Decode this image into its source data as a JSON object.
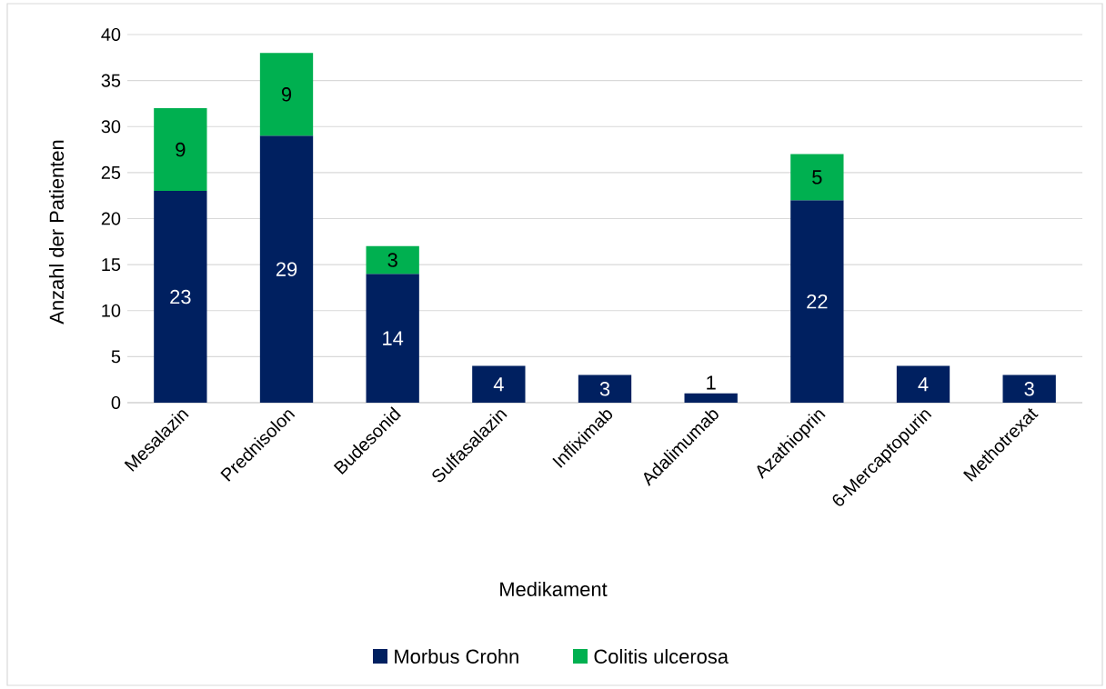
{
  "chart_data": {
    "type": "bar",
    "stacked": true,
    "xlabel": "Medikament",
    "ylabel": "Anzahl der Patienten",
    "categories": [
      "Mesalazin",
      "Prednisolon",
      "Budesonid",
      "Sulfasalazin",
      "Infliximab",
      "Adalimumab",
      "Azathioprin",
      "6-Mercaptopurin",
      "Methotrexat"
    ],
    "series": [
      {
        "name": "Morbus Crohn",
        "color": "#002060",
        "values": [
          23,
          29,
          14,
          4,
          3,
          1,
          22,
          4,
          3
        ]
      },
      {
        "name": "Colitis ulcerosa",
        "color": "#00b050",
        "values": [
          9,
          9,
          3,
          null,
          null,
          null,
          5,
          null,
          null
        ]
      }
    ],
    "ylim": [
      0,
      40
    ],
    "yticks": [
      0,
      5,
      10,
      15,
      20,
      25,
      30,
      35,
      40
    ],
    "grid": "y",
    "legend": "bottom",
    "data_labels": true
  }
}
